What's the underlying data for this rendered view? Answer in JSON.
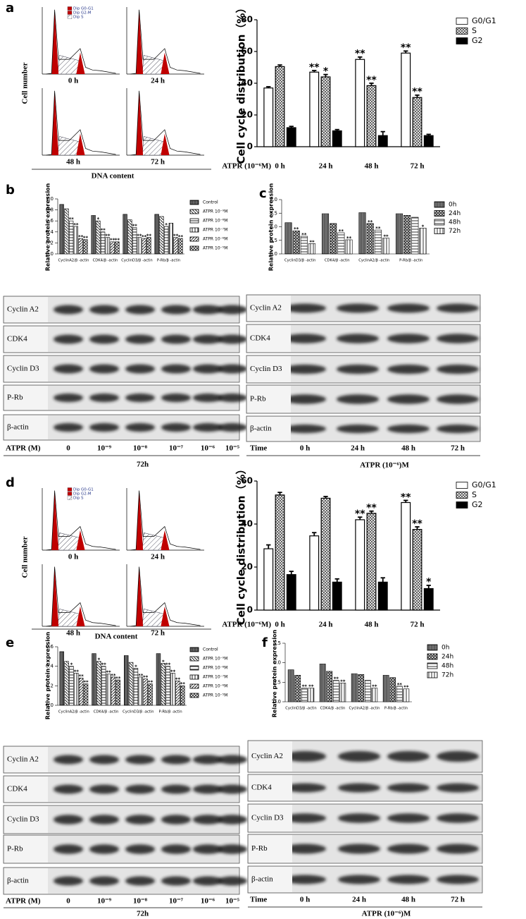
{
  "panel_labels": [
    "a",
    "b",
    "c",
    "d",
    "e",
    "f"
  ],
  "chart_data": [
    {
      "type": "bar",
      "y_label": "Cell cycle distribution（%）",
      "x_label": "ATPR (10⁻⁶M)",
      "categories": [
        "0 h",
        "24 h",
        "48 h",
        "72 h"
      ],
      "ylim": [
        0,
        80
      ],
      "yticks": [
        0,
        20,
        40,
        60,
        80
      ],
      "legend": "upper right",
      "series": [
        {
          "name": "G0/G1",
          "color": "#ffffff",
          "pattern": "solid",
          "values": [
            37,
            47,
            55,
            59
          ],
          "errors": [
            0.8,
            1,
            1.5,
            1.3
          ],
          "annotations": [
            null,
            "**",
            "**",
            "**"
          ]
        },
        {
          "name": "S",
          "color": "#444444",
          "pattern": "cross",
          "values": [
            50.5,
            44,
            38.5,
            31
          ],
          "errors": [
            1,
            1.5,
            1.5,
            1.5
          ],
          "annotations": [
            null,
            "*",
            "**",
            "**"
          ]
        },
        {
          "name": "G2",
          "color": "#000000",
          "pattern": "solid",
          "values": [
            12,
            10,
            7,
            7
          ],
          "errors": [
            0.8,
            0.8,
            2.5,
            0.8
          ]
        }
      ]
    },
    {
      "type": "bar",
      "y_label": "Relative protein expression",
      "categories": [
        "CyclinA2/β -actin",
        "CDK4/β -actin",
        "CyclinD3/β -actin",
        "P-Rb/β -actin"
      ],
      "ylim": [
        0,
        1
      ],
      "yticks": [
        {
          "value": 0,
          "label": "0.0"
        },
        0.2,
        0.4,
        0.6,
        0.8,
        {
          "value": 1,
          "label": "1.0"
        }
      ],
      "legend": "upper right",
      "series": [
        {
          "name": "Control",
          "color": "#222222",
          "pattern": "dense",
          "values": [
            0.9,
            0.7,
            0.72,
            0.72
          ]
        },
        {
          "name": "ATPR 10⁻⁹M",
          "color": "#222222",
          "pattern": "diag2",
          "values": [
            0.82,
            0.6,
            0.62,
            0.68
          ],
          "annotations": [
            null,
            "*",
            null,
            null
          ]
        },
        {
          "name": "ATPR 10⁻⁸M",
          "color": "#222222",
          "pattern": "hlines",
          "values": [
            0.6,
            0.4,
            0.48,
            0.5
          ],
          "annotations": [
            "**",
            "**",
            "**",
            "*"
          ]
        },
        {
          "name": "ATPR 10⁻⁷M",
          "color": "#222222",
          "pattern": "vlines",
          "values": [
            0.5,
            0.3,
            0.3,
            0.56
          ],
          "annotations": [
            "**",
            "**",
            "**",
            null
          ]
        },
        {
          "name": "ATPR 10⁻⁶M",
          "color": "#222222",
          "pattern": "diag",
          "values": [
            0.28,
            0.22,
            0.28,
            0.3
          ],
          "annotations": [
            "**",
            "**",
            "**",
            "**"
          ]
        },
        {
          "name": "ATPR 10⁻⁵M",
          "color": "#222222",
          "pattern": "cross",
          "values": [
            0.26,
            0.22,
            0.3,
            0.28
          ],
          "annotations": [
            "**",
            "**",
            "**",
            "**"
          ]
        }
      ]
    },
    {
      "type": "bar",
      "y_label": "Relative protein expression",
      "categories": [
        "CyclinD3/β -actin",
        "CDK4/β -actin",
        "CyclinA2/β -actin",
        "P-Rb/β -actin"
      ],
      "ylim": [
        0,
        2
      ],
      "yticks": [
        {
          "value": 0,
          "label": "0.0"
        },
        0.5,
        {
          "value": 1,
          "label": "1.0"
        },
        1.5,
        {
          "value": 2,
          "label": "2.0"
        }
      ],
      "legend": "upper right",
      "series": [
        {
          "name": "0h",
          "color": "#333333",
          "pattern": "dense",
          "values": [
            1.15,
            1.48,
            1.52,
            1.48
          ]
        },
        {
          "name": "24h",
          "color": "#333333",
          "pattern": "check",
          "values": [
            0.85,
            1.12,
            1.12,
            1.42
          ],
          "annotations": [
            "**",
            null,
            "**",
            null
          ]
        },
        {
          "name": "48h",
          "color": "#333333",
          "pattern": "hlines",
          "values": [
            0.65,
            0.78,
            0.88,
            1.35
          ],
          "annotations": [
            "**",
            "**",
            "**",
            null
          ]
        },
        {
          "name": "72h",
          "color": "#333333",
          "pattern": "vlines",
          "values": [
            0.38,
            0.52,
            0.58,
            0.95
          ],
          "annotations": [
            "**",
            "**",
            "**",
            "*"
          ]
        }
      ]
    },
    {
      "type": "bar",
      "y_label": "Cell cycle distribution（%）",
      "x_label": "ATPR (10⁻⁶M)",
      "categories": [
        "0 h",
        "24 h",
        "48 h",
        "72 h"
      ],
      "ylim": [
        0,
        60
      ],
      "yticks": [
        0,
        20,
        40,
        60
      ],
      "legend": "upper right",
      "series": [
        {
          "name": "G0/G1",
          "color": "#ffffff",
          "pattern": "solid",
          "values": [
            28.5,
            34.5,
            42,
            50
          ],
          "errors": [
            1.8,
            1.5,
            1.2,
            1
          ],
          "annotations": [
            null,
            null,
            "**",
            "**"
          ]
        },
        {
          "name": "S",
          "color": "#444444",
          "pattern": "cross",
          "values": [
            53.5,
            52,
            45,
            37.5
          ],
          "errors": [
            1.2,
            0.8,
            1,
            1.2
          ],
          "annotations": [
            null,
            null,
            "**",
            "**"
          ]
        },
        {
          "name": "G2",
          "color": "#000000",
          "pattern": "solid",
          "values": [
            16.5,
            13,
            13,
            10
          ],
          "errors": [
            1.5,
            1.5,
            2,
            1.5
          ],
          "annotations": [
            null,
            null,
            null,
            "*"
          ]
        }
      ]
    },
    {
      "type": "bar",
      "y_label": "Relative protein expression",
      "categories": [
        "CyclinA2/β -actin",
        "CDK4/β -actin",
        "CyclinD3/β -actin",
        "P-Rb/β -actin"
      ],
      "ylim": [
        0,
        0.6
      ],
      "yticks": [
        {
          "value": 0,
          "label": "0.0"
        },
        0.2,
        0.4,
        0.6
      ],
      "legend": "upper right",
      "series": [
        {
          "name": "Control",
          "color": "#222222",
          "pattern": "dense",
          "values": [
            0.55,
            0.53,
            0.51,
            0.53
          ]
        },
        {
          "name": "ATPR 10⁻⁹M",
          "color": "#222222",
          "pattern": "diag2",
          "values": [
            0.45,
            0.45,
            0.44,
            0.43
          ],
          "annotations": [
            null,
            "*",
            null,
            "*"
          ]
        },
        {
          "name": "ATPR 10⁻⁸M",
          "color": "#222222",
          "pattern": "hlines",
          "values": [
            0.4,
            0.4,
            0.38,
            0.4
          ],
          "annotations": [
            "*",
            "**",
            "*",
            "**"
          ]
        },
        {
          "name": "ATPR 10⁻⁷M",
          "color": "#222222",
          "pattern": "vlines",
          "values": [
            0.33,
            0.32,
            0.29,
            0.33
          ],
          "annotations": [
            "**",
            "**",
            "**",
            "**"
          ]
        },
        {
          "name": "ATPR 10⁻⁶M",
          "color": "#222222",
          "pattern": "diag",
          "values": [
            0.28,
            0.29,
            0.27,
            0.25
          ],
          "annotations": [
            "**",
            "**",
            "**",
            "**"
          ]
        },
        {
          "name": "ATPR 10⁻⁵M",
          "color": "#222222",
          "pattern": "cross",
          "values": [
            0.22,
            0.26,
            0.22,
            0.2
          ],
          "annotations": [
            "**",
            "**",
            "**",
            "**"
          ]
        }
      ]
    },
    {
      "type": "bar",
      "y_label": "Relative protein expression",
      "categories": [
        "CyclinD3/β -actin",
        "CDK4/β -actin",
        "CyclinA2/β -actin",
        "P-Rb/β -actin"
      ],
      "ylim": [
        0,
        1.5
      ],
      "yticks": [
        {
          "value": 0,
          "label": "0.0"
        },
        0.5,
        {
          "value": 1,
          "label": "1.0"
        },
        1.5
      ],
      "legend": "upper right",
      "series": [
        {
          "name": "0h",
          "color": "#333333",
          "pattern": "dense",
          "values": [
            0.82,
            0.97,
            0.72,
            0.68
          ]
        },
        {
          "name": "24h",
          "color": "#333333",
          "pattern": "check",
          "values": [
            0.68,
            0.78,
            0.7,
            0.62
          ]
        },
        {
          "name": "48h",
          "color": "#333333",
          "pattern": "hlines",
          "values": [
            0.35,
            0.55,
            0.55,
            0.4
          ],
          "annotations": [
            "**",
            "**",
            null,
            "**"
          ]
        },
        {
          "name": "72h",
          "color": "#333333",
          "pattern": "vlines",
          "values": [
            0.35,
            0.48,
            0.35,
            0.33
          ],
          "annotations": [
            "**",
            "**",
            "**",
            "**"
          ]
        }
      ]
    }
  ],
  "flow": [
    {
      "y_label": "Cell number",
      "x_label": "DNA content",
      "legend": [
        "Dip G0-G1",
        "Dip G2-M",
        "Dip S"
      ],
      "times": [
        "0 h",
        "24 h",
        "48 h",
        "72 h"
      ]
    },
    {
      "y_label": "Cell number",
      "x_label": "DNA content",
      "legend": [
        "Dip G0-G1",
        "Dip G2-M",
        "Dip S"
      ],
      "times": [
        "0 h",
        "24 h",
        "48 h",
        "72 h"
      ]
    }
  ],
  "blots": [
    {
      "rows": [
        "Cyclin A2",
        "CDK4",
        "Cyclin D3",
        "P-Rb",
        "β-actin"
      ],
      "axis_label": "ATPR (M)",
      "lanes": [
        "0",
        "10⁻⁹",
        "10⁻⁸",
        "10⁻⁷",
        "10⁻⁶",
        "10⁻⁵"
      ],
      "footer": "72h"
    },
    {
      "rows": [
        "Cyclin A2",
        "CDK4",
        "Cyclin D3",
        "P-Rb",
        "β-actin"
      ],
      "axis_label": "Time",
      "lanes": [
        "0 h",
        "24 h",
        "48 h",
        "72 h"
      ],
      "footer": "ATPR (10⁻⁶)M"
    },
    {
      "rows": [
        "Cyclin A2",
        "CDK4",
        "Cyclin D3",
        "P-Rb",
        "β-actin"
      ],
      "axis_label": "ATPR (M)",
      "lanes": [
        "0",
        "10⁻⁹",
        "10⁻⁸",
        "10⁻⁷",
        "10⁻⁶",
        "10⁻⁵"
      ],
      "footer": "72h"
    },
    {
      "rows": [
        "Cyclin A2",
        "CDK4",
        "Cyclin D3",
        "P-Rb",
        "β-actin"
      ],
      "axis_label": "Time",
      "lanes": [
        "0 h",
        "24 h",
        "48 h",
        "72 h"
      ],
      "footer": "ATPR (10⁻⁶)M"
    }
  ]
}
